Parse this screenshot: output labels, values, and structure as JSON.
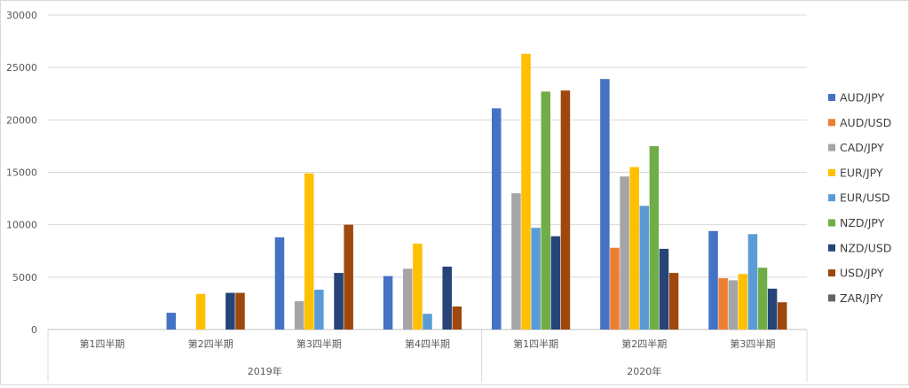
{
  "chart_data": {
    "type": "bar",
    "title": "",
    "xlabel": "",
    "ylabel": "",
    "ylim": [
      0,
      30000
    ],
    "yticks": [
      0,
      5000,
      10000,
      15000,
      20000,
      25000,
      30000
    ],
    "ytick_labels": [
      "0",
      "5000",
      "10000",
      "15000",
      "20000",
      "25000",
      "30000"
    ],
    "grid": true,
    "legend_position": "right",
    "groups": [
      {
        "label": "2019年",
        "categories": [
          "第1四半期",
          "第2四半期",
          "第3四半期",
          "第4四半期"
        ]
      },
      {
        "label": "2020年",
        "categories": [
          "第1四半期",
          "第2四半期",
          "第3四半期"
        ]
      }
    ],
    "categories": [
      "2019年 第1四半期",
      "2019年 第2四半期",
      "2019年 第3四半期",
      "2019年 第4四半期",
      "2020年 第1四半期",
      "2020年 第2四半期",
      "2020年 第3四半期"
    ],
    "series": [
      {
        "name": "AUD/JPY",
        "color": "#4472C4",
        "values": [
          0,
          1600,
          8800,
          5100,
          21100,
          23900,
          9400
        ]
      },
      {
        "name": "AUD/USD",
        "color": "#ED7D31",
        "values": [
          0,
          0,
          0,
          0,
          0,
          7800,
          4900
        ]
      },
      {
        "name": "CAD/JPY",
        "color": "#A5A5A5",
        "values": [
          0,
          0,
          2700,
          5800,
          13000,
          14600,
          4700
        ]
      },
      {
        "name": "EUR/JPY",
        "color": "#FFC000",
        "values": [
          0,
          3400,
          14900,
          8200,
          26300,
          15500,
          5300
        ]
      },
      {
        "name": "EUR/USD",
        "color": "#5B9BD5",
        "values": [
          0,
          0,
          3800,
          1500,
          9700,
          11800,
          9100
        ]
      },
      {
        "name": "NZD/JPY",
        "color": "#70AD47",
        "values": [
          0,
          0,
          0,
          0,
          22700,
          17500,
          5900
        ]
      },
      {
        "name": "NZD/USD",
        "color": "#264478",
        "values": [
          0,
          3500,
          5400,
          6000,
          8900,
          7700,
          3900
        ]
      },
      {
        "name": "USD/JPY",
        "color": "#9E480E",
        "values": [
          0,
          3500,
          10000,
          2200,
          22800,
          5400,
          2600
        ]
      },
      {
        "name": "ZAR/JPY",
        "color": "#636363",
        "values": [
          0,
          0,
          0,
          0,
          0,
          0,
          0
        ]
      }
    ]
  }
}
